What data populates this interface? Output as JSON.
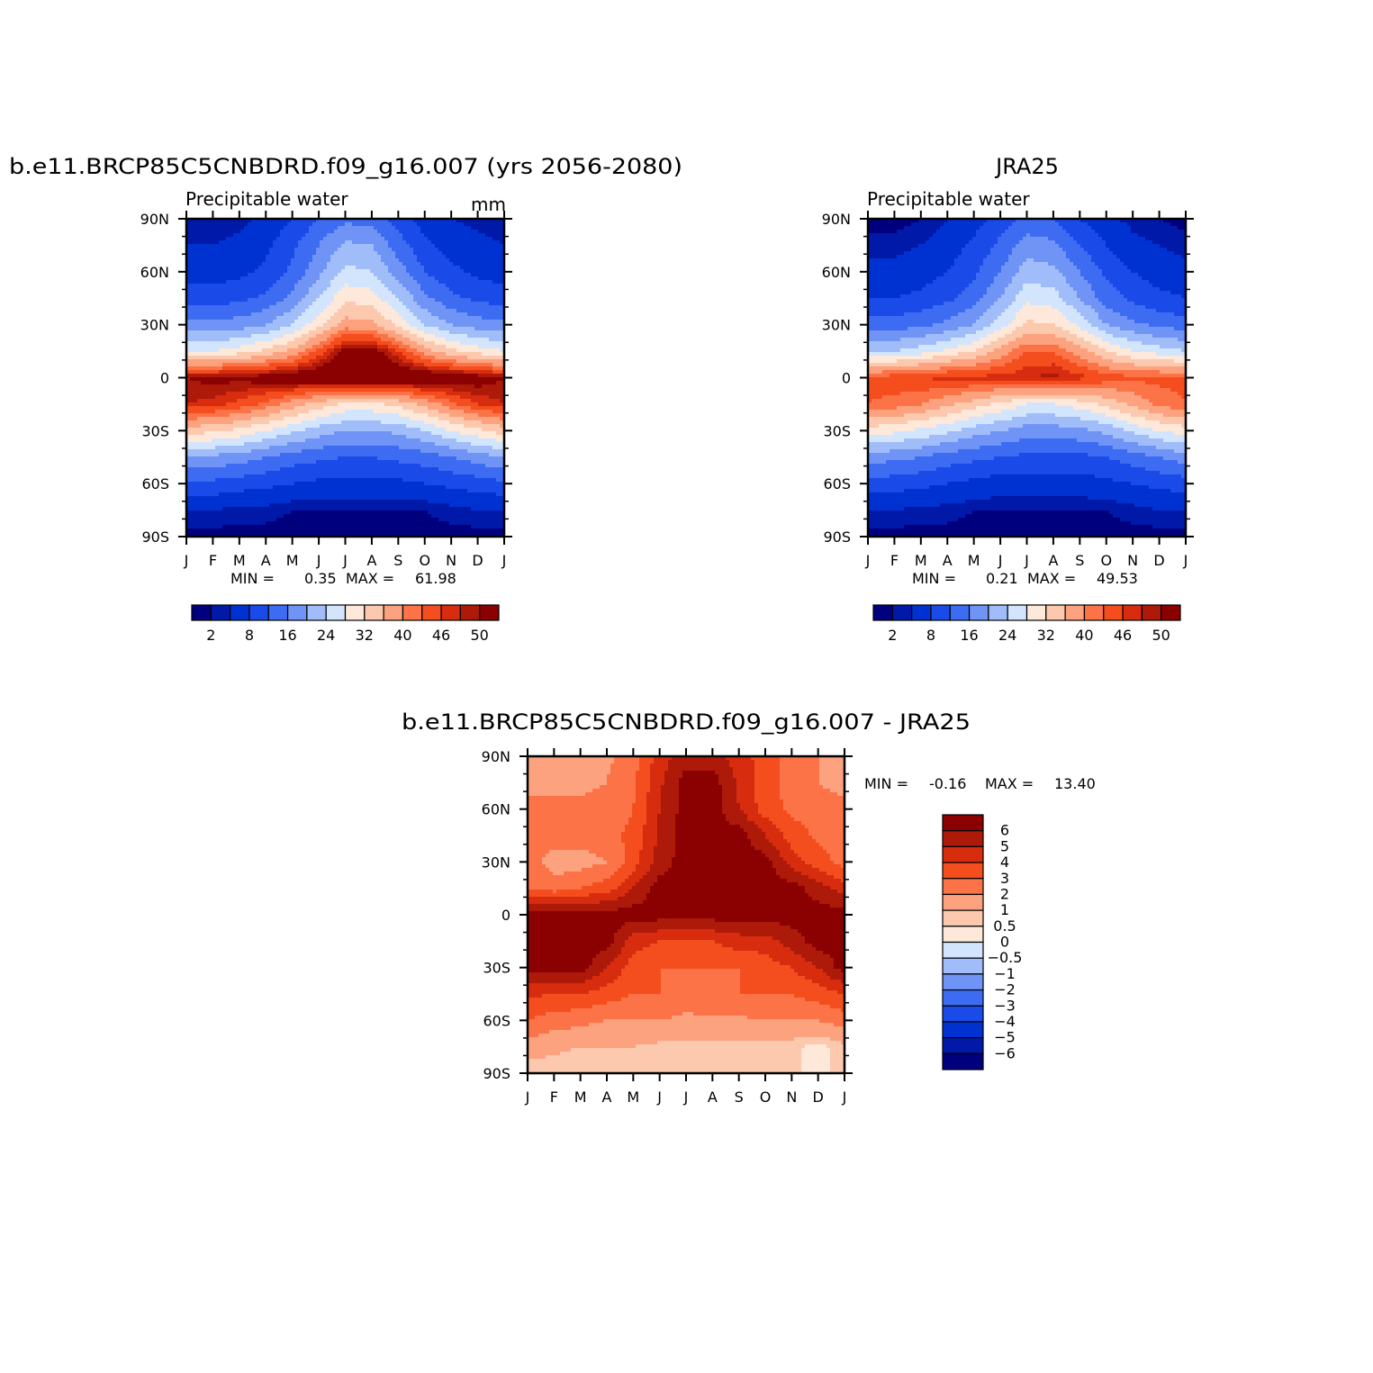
{
  "chart_data": [
    {
      "type": "heatmap",
      "title": "b.e11.BRCP85C5CNBDRD.f09_g16.007 (yrs 2056-2080)",
      "subtitle_left": "Precipitable water",
      "subtitle_right": "mm",
      "x_tick_labels": [
        "J",
        "F",
        "M",
        "A",
        "M",
        "J",
        "J",
        "A",
        "S",
        "O",
        "N",
        "D",
        "J"
      ],
      "y_tick_labels": [
        "90N",
        "60N",
        "30N",
        "0",
        "30S",
        "60S",
        "90S"
      ],
      "ylim": [
        -90,
        90
      ],
      "stats": {
        "min_label": "MIN =",
        "min": "0.35",
        "max_label": "MAX =",
        "max": "61.98"
      },
      "months": [
        "J",
        "F",
        "M",
        "A",
        "M",
        "J",
        "J",
        "A",
        "S",
        "O",
        "N",
        "D",
        "J"
      ],
      "latitudes": [
        90,
        75,
        60,
        45,
        30,
        15,
        0,
        -15,
        -30,
        -45,
        -60,
        -75,
        -90
      ],
      "rows": [
        [
          2,
          2,
          3,
          5,
          8,
          12,
          15,
          14,
          10,
          6,
          4,
          3,
          2
        ],
        [
          4,
          4,
          5,
          7,
          11,
          16,
          21,
          20,
          14,
          9,
          6,
          5,
          4
        ],
        [
          6,
          6,
          7,
          9,
          13,
          19,
          25,
          24,
          18,
          12,
          9,
          7,
          6
        ],
        [
          10,
          10,
          11,
          13,
          17,
          24,
          31,
          30,
          24,
          17,
          13,
          11,
          10
        ],
        [
          17,
          17,
          18,
          20,
          24,
          31,
          38,
          37,
          31,
          24,
          20,
          18,
          17
        ],
        [
          28,
          28,
          30,
          33,
          37,
          44,
          52,
          52,
          46,
          38,
          33,
          30,
          28
        ],
        [
          50,
          51,
          51,
          52,
          53,
          54,
          55,
          55,
          54,
          54,
          53,
          52,
          50
        ],
        [
          48,
          47,
          45,
          42,
          38,
          34,
          31,
          31,
          33,
          37,
          42,
          46,
          48
        ],
        [
          34,
          33,
          31,
          28,
          25,
          22,
          20,
          20,
          21,
          24,
          28,
          31,
          34
        ],
        [
          20,
          19,
          18,
          16,
          14,
          13,
          12,
          12,
          13,
          14,
          16,
          18,
          20
        ],
        [
          11,
          11,
          10,
          9,
          8,
          7,
          7,
          7,
          7,
          8,
          9,
          10,
          11
        ],
        [
          4,
          4,
          3,
          3,
          2,
          2,
          2,
          2,
          2,
          2,
          3,
          4,
          4
        ],
        [
          1,
          1,
          1,
          1,
          1,
          1,
          1,
          1,
          1,
          1,
          1,
          1,
          1
        ]
      ],
      "colorbar": {
        "orientation": "horizontal",
        "levels": [
          2,
          4,
          8,
          12,
          16,
          20,
          24,
          28,
          32,
          36,
          40,
          43,
          46,
          48,
          50
        ],
        "labels": [
          "2",
          "8",
          "16",
          "24",
          "32",
          "40",
          "46",
          "50"
        ],
        "colors": [
          "#00007f",
          "#0019a8",
          "#0032d2",
          "#1a4ae8",
          "#3d6cf2",
          "#6f94f6",
          "#a0bdfa",
          "#d3e5fc",
          "#fde8d9",
          "#fcc8ae",
          "#fca27f",
          "#fc7347",
          "#f44e1e",
          "#d72c0e",
          "#ad1a0a",
          "#8b0000"
        ]
      }
    },
    {
      "type": "heatmap",
      "title": "JRA25",
      "subtitle_left": "Precipitable water",
      "subtitle_right": "",
      "x_tick_labels": [
        "J",
        "F",
        "M",
        "A",
        "M",
        "J",
        "J",
        "A",
        "S",
        "O",
        "N",
        "D",
        "J"
      ],
      "y_tick_labels": [
        "90N",
        "60N",
        "30N",
        "0",
        "30S",
        "60S",
        "90S"
      ],
      "ylim": [
        -90,
        90
      ],
      "stats": {
        "min_label": "MIN =",
        "min": "0.21",
        "max_label": "MAX =",
        "max": "49.53"
      },
      "months": [
        "J",
        "F",
        "M",
        "A",
        "M",
        "J",
        "J",
        "A",
        "S",
        "O",
        "N",
        "D",
        "J"
      ],
      "latitudes": [
        90,
        75,
        60,
        45,
        30,
        15,
        0,
        -15,
        -30,
        -45,
        -60,
        -75,
        -90
      ],
      "rows": [
        [
          1,
          1,
          2,
          4,
          6,
          10,
          13,
          12,
          8,
          5,
          3,
          2,
          1
        ],
        [
          3,
          3,
          4,
          6,
          9,
          13,
          18,
          17,
          12,
          8,
          5,
          4,
          3
        ],
        [
          5,
          5,
          6,
          8,
          11,
          16,
          22,
          21,
          16,
          11,
          8,
          6,
          5
        ],
        [
          8,
          8,
          9,
          11,
          14,
          20,
          27,
          26,
          20,
          14,
          11,
          9,
          8
        ],
        [
          14,
          14,
          15,
          17,
          20,
          26,
          33,
          32,
          27,
          20,
          17,
          15,
          14
        ],
        [
          24,
          24,
          26,
          29,
          32,
          38,
          43,
          43,
          38,
          32,
          28,
          26,
          24
        ],
        [
          44,
          45,
          46,
          47,
          47,
          47,
          48,
          49,
          47,
          45,
          44,
          44,
          44
        ],
        [
          43,
          42,
          40,
          37,
          34,
          31,
          28,
          28,
          30,
          33,
          37,
          41,
          43
        ],
        [
          30,
          29,
          27,
          25,
          22,
          20,
          18,
          18,
          19,
          21,
          25,
          28,
          30
        ],
        [
          18,
          17,
          16,
          14,
          13,
          12,
          11,
          11,
          11,
          12,
          14,
          16,
          18
        ],
        [
          10,
          10,
          9,
          8,
          7,
          6,
          6,
          6,
          6,
          7,
          8,
          9,
          10
        ],
        [
          4,
          4,
          3,
          3,
          2,
          2,
          2,
          2,
          2,
          2,
          3,
          4,
          4
        ],
        [
          1,
          1,
          1,
          1,
          1,
          1,
          1,
          1,
          1,
          1,
          1,
          1,
          1
        ]
      ],
      "colorbar": {
        "orientation": "horizontal",
        "levels": [
          2,
          4,
          8,
          12,
          16,
          20,
          24,
          28,
          32,
          36,
          40,
          43,
          46,
          48,
          50
        ],
        "labels": [
          "2",
          "8",
          "16",
          "24",
          "32",
          "40",
          "46",
          "50"
        ],
        "colors": [
          "#00007f",
          "#0019a8",
          "#0032d2",
          "#1a4ae8",
          "#3d6cf2",
          "#6f94f6",
          "#a0bdfa",
          "#d3e5fc",
          "#fde8d9",
          "#fcc8ae",
          "#fca27f",
          "#fc7347",
          "#f44e1e",
          "#d72c0e",
          "#ad1a0a",
          "#8b0000"
        ]
      }
    },
    {
      "type": "heatmap",
      "title": "b.e11.BRCP85C5CNBDRD.f09_g16.007 - JRA25",
      "subtitle_left": "",
      "subtitle_right": "",
      "x_tick_labels": [
        "J",
        "F",
        "M",
        "A",
        "M",
        "J",
        "J",
        "A",
        "S",
        "O",
        "N",
        "D",
        "J"
      ],
      "y_tick_labels": [
        "90N",
        "60N",
        "30N",
        "0",
        "30S",
        "60S",
        "90S"
      ],
      "ylim": [
        -90,
        90
      ],
      "stats": {
        "min_label": "MIN =",
        "min": "-0.16",
        "max_label": "MAX =",
        "max": "13.40"
      },
      "months": [
        "J",
        "F",
        "M",
        "A",
        "M",
        "J",
        "J",
        "A",
        "S",
        "O",
        "N",
        "D",
        "J"
      ],
      "latitudes": [
        90,
        75,
        60,
        45,
        30,
        15,
        0,
        -15,
        -30,
        -45,
        -60,
        -75,
        -90
      ],
      "rows": [
        [
          1.5,
          1.5,
          1.6,
          1.8,
          2.5,
          4.5,
          5.5,
          5.5,
          4.5,
          3.5,
          2.5,
          2,
          1.5
        ],
        [
          1.5,
          1.5,
          1.8,
          2,
          2.8,
          4.8,
          6.5,
          6.5,
          4.8,
          3.5,
          2.5,
          2,
          1.5
        ],
        [
          2.5,
          2.5,
          2.2,
          2.3,
          3,
          5,
          6.5,
          6.5,
          5,
          3.5,
          2.8,
          2.5,
          2.5
        ],
        [
          2.5,
          2.5,
          2.5,
          2.6,
          3.3,
          5.2,
          6.5,
          6.5,
          6.5,
          5,
          3.5,
          2.8,
          2.5
        ],
        [
          2.5,
          1.5,
          1.5,
          2,
          3.5,
          5.5,
          6.5,
          6.5,
          6.5,
          6.5,
          4.5,
          3.5,
          2.5
        ],
        [
          3,
          2.5,
          3,
          3.5,
          5,
          6.5,
          6.5,
          6.5,
          6.5,
          6.5,
          6.5,
          5.5,
          4.5
        ],
        [
          6.5,
          6.5,
          6.5,
          6.5,
          6.5,
          6.5,
          6.5,
          6.5,
          6.5,
          6.5,
          6.5,
          6.5,
          6.5
        ],
        [
          6.5,
          6.5,
          6.5,
          6.5,
          4.5,
          4,
          4,
          4,
          4.5,
          4.5,
          5.5,
          6.5,
          6.5
        ],
        [
          6.5,
          6.5,
          6.5,
          5,
          3.5,
          3,
          3,
          3,
          3,
          3.5,
          4,
          5,
          6.5
        ],
        [
          4.2,
          4,
          4,
          3.5,
          3,
          3,
          2.5,
          2.8,
          3,
          3,
          3,
          3.5,
          4
        ],
        [
          3,
          2.5,
          2.3,
          2,
          2,
          2,
          1.8,
          1.8,
          1.8,
          2,
          2,
          2,
          2.5
        ],
        [
          1.5,
          1.2,
          1,
          1,
          1,
          0.8,
          0.8,
          0.8,
          0.8,
          0.7,
          0.6,
          0.3,
          0.8
        ],
        [
          0.5,
          0.5,
          0.5,
          0.5,
          0.5,
          0.5,
          0.5,
          0.5,
          0.5,
          0.5,
          0.5,
          0.5,
          0.5
        ]
      ],
      "colorbar": {
        "orientation": "vertical",
        "levels": [
          -6,
          -5,
          -4,
          -3,
          -2,
          -1,
          -0.5,
          0,
          0.5,
          1,
          2,
          3,
          4,
          5,
          6
        ],
        "labels": [
          "6",
          "5",
          "4",
          "3",
          "2",
          "1",
          "0.5",
          "0",
          "−0.5",
          "−1",
          "−2",
          "−3",
          "−4",
          "−5",
          "−6"
        ],
        "colors": [
          "#00007f",
          "#0019a8",
          "#0032d2",
          "#1a4ae8",
          "#3d6cf2",
          "#6f94f6",
          "#a0bdfa",
          "#d3e5fc",
          "#fde8d9",
          "#fcc8ae",
          "#fca27f",
          "#fc7347",
          "#f44e1e",
          "#d72c0e",
          "#ad1a0a",
          "#8b0000"
        ]
      }
    }
  ]
}
